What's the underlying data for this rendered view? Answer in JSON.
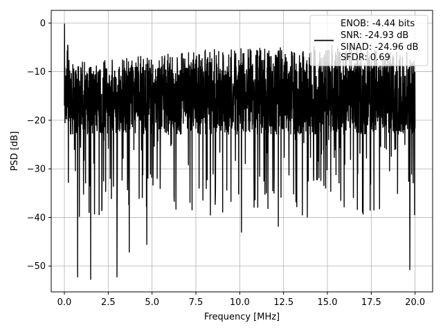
{
  "chart_data": {
    "type": "line",
    "xlabel": "Frequency [MHz]",
    "ylabel": "PSD [dB]",
    "xlim": [
      -0.75,
      21.0
    ],
    "ylim": [
      -55.3,
      2.6
    ],
    "grid": true,
    "x_ticks": [
      0.0,
      2.5,
      5.0,
      7.5,
      10.0,
      12.5,
      15.0,
      17.5,
      20.0
    ],
    "x_tick_labels": [
      "0.0",
      "2.5",
      "5.0",
      "7.5",
      "10.0",
      "12.5",
      "15.0",
      "17.5",
      "20.0"
    ],
    "y_ticks": [
      0,
      -10,
      -20,
      -30,
      -40,
      -50
    ],
    "y_tick_labels": [
      "0",
      "−10",
      "−20",
      "−30",
      "−40",
      "−50"
    ],
    "legend": {
      "placement": "top-right",
      "entries": [
        "ENOB: -4.44 bits",
        "SNR: -24.93 dB",
        "SINAD: -24.96 dB",
        "SFDR: 0.69"
      ]
    },
    "series": [
      {
        "color": "#000000",
        "x_range": [
          0.0,
          20.0
        ],
        "level_db": -16,
        "spread_db": 7,
        "upper_envelope": [
          [
            0.0,
            0.0
          ],
          [
            0.1,
            -1.5
          ],
          [
            0.4,
            -8
          ],
          [
            2.5,
            -7.5
          ],
          [
            5.0,
            -6.5
          ],
          [
            7.5,
            -5.5
          ],
          [
            10.0,
            -5.0
          ],
          [
            12.5,
            -5.0
          ],
          [
            15.0,
            -4.5
          ],
          [
            17.5,
            -5.0
          ],
          [
            20.0,
            -6.0
          ]
        ],
        "deep_nulls": [
          [
            0.75,
            -52.3
          ],
          [
            1.5,
            -52.8
          ],
          [
            3.0,
            -52.3
          ],
          [
            3.7,
            -47.2
          ],
          [
            4.7,
            -45.6
          ],
          [
            10.1,
            -43.1
          ],
          [
            12.2,
            -41.9
          ],
          [
            19.7,
            -50.8
          ]
        ]
      }
    ]
  }
}
